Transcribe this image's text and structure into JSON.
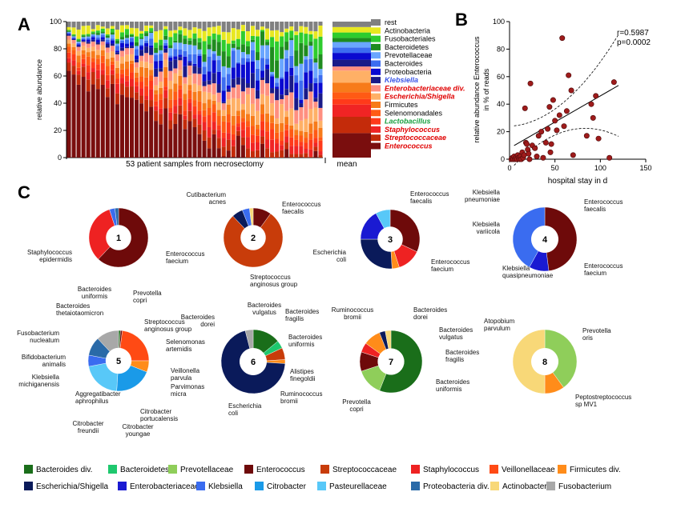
{
  "panels": {
    "a": "A",
    "b": "B",
    "c": "C"
  },
  "colors": {
    "Enterococcus": "#7a0e0e",
    "Streptococcaceae": "#c42b0a",
    "Staphylococcus": "#f02424",
    "Lactobacillus": "#ff3a1a",
    "Selenomonadales": "#ff5a14",
    "Firmicutes": "#f77b1a",
    "Escherichia/Shigella": "#ffb066",
    "Enterobacteriaceae div.": "#ff8f80",
    "Klebsiella": "#1a1a88",
    "Proteobacteria": "#0a0ad0",
    "Bacteroides": "#3c6cf0",
    "Prevotellaceae": "#6aa6ff",
    "Bacteroidetes": "#1f8c1f",
    "Fusobacteriales": "#2ecc2e",
    "Actinobacteria": "#e8e820",
    "rest": "#808080",
    "pie": {
      "bact_div": "#1a6e1a",
      "bacteroidetes": "#1ec86e",
      "prevotellaceae": "#8fce5a",
      "enterococcus": "#6e0a0a",
      "streptococcaceae": "#c83c0a",
      "staphylococcus": "#ee2222",
      "veillonellaceae": "#ff4a14",
      "firmicutes_div": "#ff8c1a",
      "escherichia": "#0a1a5a",
      "enterobacteriaceae": "#1a1ad2",
      "klebsiella": "#3a6cf0",
      "citrobacter": "#1a9ae8",
      "pasteurellaceae": "#58c8f8",
      "proteobacteria_div": "#2a6aa8",
      "actinobacteria": "#f8d878",
      "fusobacterium": "#a8a8a8"
    }
  },
  "chart_data": [
    {
      "id": "A",
      "type": "bar",
      "stacked": true,
      "xlabel": "53 patient samples from necrosectomy",
      "mean_label": "mean",
      "ylabel": "relative abundance",
      "ylim": [
        0,
        100
      ],
      "yticks": [
        "0",
        "20",
        "40",
        "60",
        "80",
        "100"
      ],
      "sample_count": 53,
      "series_order": [
        "Enterococcus",
        "Streptococcaceae",
        "Staphylococcus",
        "Lactobacillus",
        "Selenomonadales",
        "Firmicutes",
        "Escherichia/Shigella",
        "Enterobacteriaceae div.",
        "Klebsiella",
        "Proteobacteria",
        "Bacteroides",
        "Prevotellaceae",
        "Bacteroidetes",
        "Fusobacteriales",
        "Actinobacteria",
        "rest"
      ],
      "mean": [
        18,
        12,
        9,
        4,
        5,
        7,
        9,
        3,
        5,
        5,
        4,
        4,
        3,
        4,
        4,
        4
      ],
      "legend": [
        {
          "label": "rest",
          "key": "rest",
          "style": "normal"
        },
        {
          "label": "Actinobacteria",
          "key": "Actinobacteria",
          "style": "normal"
        },
        {
          "label": "Fusobacteriales",
          "key": "Fusobacteriales",
          "style": "normal"
        },
        {
          "label": "Bacteroidetes",
          "key": "Bacteroidetes",
          "style": "normal"
        },
        {
          "label": "Prevotellaceae",
          "key": "Prevotellaceae",
          "style": "normal"
        },
        {
          "label": "Bacteroides",
          "key": "Bacteroides",
          "style": "normal"
        },
        {
          "label": "Proteobacteria",
          "key": "Proteobacteria",
          "style": "normal"
        },
        {
          "label": "Klebsiella",
          "key": "Klebsiella",
          "style": "blue"
        },
        {
          "label": "Enterobacteriaceae div.",
          "key": "Enterobacteriaceae div.",
          "style": "red"
        },
        {
          "label": "Escherichia/Shigella",
          "key": "Escherichia/Shigella",
          "style": "red"
        },
        {
          "label": "Firmicutes",
          "key": "Firmicutes",
          "style": "normal"
        },
        {
          "label": "Selenomonadales",
          "key": "Selenomonadales",
          "style": "normal"
        },
        {
          "label": "Lactobacillus",
          "key": "Lactobacillus",
          "style": "green"
        },
        {
          "label": "Staphylococcus",
          "key": "Staphylococcus",
          "style": "red"
        },
        {
          "label": "Streptococcaceae",
          "key": "Streptococcaceae",
          "style": "red"
        },
        {
          "label": "Enterococcus",
          "key": "Enterococcus",
          "style": "red"
        }
      ]
    },
    {
      "id": "B",
      "type": "scatter",
      "xlabel": "hospital stay in d",
      "ylabel": "relative abundance Enterococcus in % of reads",
      "xlim": [
        0,
        150
      ],
      "ylim": [
        0,
        100
      ],
      "xticks": [
        "0",
        "50",
        "100",
        "150"
      ],
      "yticks": [
        "0",
        "20",
        "40",
        "60",
        "80",
        "100"
      ],
      "stats": {
        "r": "r=0.5987",
        "p": "p=0.0002"
      },
      "points": [
        [
          2,
          0
        ],
        [
          3,
          1
        ],
        [
          4,
          0
        ],
        [
          5,
          2
        ],
        [
          6,
          0
        ],
        [
          7,
          1
        ],
        [
          8,
          0
        ],
        [
          9,
          3
        ],
        [
          10,
          1
        ],
        [
          11,
          0
        ],
        [
          12,
          2
        ],
        [
          13,
          0
        ],
        [
          14,
          5
        ],
        [
          15,
          1
        ],
        [
          16,
          3
        ],
        [
          18,
          12
        ],
        [
          19,
          11
        ],
        [
          20,
          7
        ],
        [
          21,
          4
        ],
        [
          22,
          0
        ],
        [
          23,
          55
        ],
        [
          25,
          10
        ],
        [
          28,
          8
        ],
        [
          30,
          2
        ],
        [
          32,
          17
        ],
        [
          35,
          20
        ],
        [
          37,
          1
        ],
        [
          40,
          12
        ],
        [
          42,
          22
        ],
        [
          44,
          38
        ],
        [
          45,
          5
        ],
        [
          46,
          11
        ],
        [
          48,
          43
        ],
        [
          50,
          28
        ],
        [
          52,
          21
        ],
        [
          55,
          32
        ],
        [
          58,
          88
        ],
        [
          60,
          24
        ],
        [
          63,
          35
        ],
        [
          65,
          61
        ],
        [
          68,
          50
        ],
        [
          70,
          3
        ],
        [
          85,
          17
        ],
        [
          90,
          40
        ],
        [
          92,
          30
        ],
        [
          95,
          46
        ],
        [
          98,
          15
        ],
        [
          110,
          1
        ],
        [
          115,
          56
        ],
        [
          17,
          37
        ]
      ],
      "fit": {
        "slope": 0.38,
        "intercept": 8
      }
    },
    {
      "id": "C",
      "type": "pie",
      "donuts": [
        {
          "num": "1",
          "slices": [
            {
              "k": "enterococcus",
              "v": 62
            },
            {
              "k": "staphylococcus",
              "v": 33
            },
            {
              "k": "klebsiella",
              "v": 3
            },
            {
              "k": "proteobacteria_div",
              "v": 2
            }
          ],
          "labels": [
            {
              "t": "Staphylococcus\nepidermidis"
            },
            {
              "t": "Enterococcus\nfaecium"
            }
          ]
        },
        {
          "num": "2",
          "slices": [
            {
              "k": "enterococcus",
              "v": 10
            },
            {
              "k": "streptococcaceae",
              "v": 78
            },
            {
              "k": "escherichia",
              "v": 6
            },
            {
              "k": "klebsiella",
              "v": 4
            },
            {
              "k": "actinobacteria",
              "v": 2
            }
          ],
          "labels": [
            {
              "t": "Cutibacterium\nacnes"
            },
            {
              "t": "Enterococcus\nfaecalis"
            },
            {
              "t": "Streptococcus\nanginosus group"
            }
          ]
        },
        {
          "num": "3",
          "slices": [
            {
              "k": "enterococcus",
              "v": 32
            },
            {
              "k": "staphylococcus",
              "v": 13
            },
            {
              "k": "firmicutes_div",
              "v": 4
            },
            {
              "k": "escherichia",
              "v": 26
            },
            {
              "k": "enterobacteriaceae",
              "v": 17
            },
            {
              "k": "pasteurellaceae",
              "v": 8
            }
          ],
          "labels": [
            {
              "t": "Enterococcus\nfaecalis"
            },
            {
              "t": "Escherichia\ncoli"
            },
            {
              "t": "Enterococcus\nfaecium"
            }
          ]
        },
        {
          "num": "4",
          "slices": [
            {
              "k": "enterococcus",
              "v": 48
            },
            {
              "k": "enterobacteriaceae",
              "v": 10
            },
            {
              "k": "klebsiella",
              "v": 42
            }
          ],
          "labels": [
            {
              "t": "Klebsiella\npneumoniae"
            },
            {
              "t": "Enterococcus\nfaecalis"
            },
            {
              "t": "Klebsiella\nvariicola"
            },
            {
              "t": "Klebsiella\nquasipneumoniae"
            },
            {
              "t": "Enterococcus\nfaecium"
            }
          ]
        },
        {
          "num": "5",
          "slices": [
            {
              "k": "bact_div",
              "v": 1
            },
            {
              "k": "enterococcus",
              "v": 1
            },
            {
              "k": "veillonellaceae",
              "v": 23
            },
            {
              "k": "firmicutes_div",
              "v": 6
            },
            {
              "k": "citrobacter",
              "v": 20
            },
            {
              "k": "pasteurellaceae",
              "v": 21
            },
            {
              "k": "klebsiella",
              "v": 6
            },
            {
              "k": "proteobacteria_div",
              "v": 10
            },
            {
              "k": "fusobacterium",
              "v": 12
            }
          ],
          "labels": [
            {
              "t": "Bacteroides\nuniformis"
            },
            {
              "t": "Prevotella\ncopri"
            },
            {
              "t": "Bacteroides\nthetaiotaomicron"
            },
            {
              "t": "Streptococcus\nanginosus group"
            },
            {
              "t": "Fusobacterium\nnucleatum"
            },
            {
              "t": "Selenomonas\nartemidis"
            },
            {
              "t": "Bifidobacterium\nanimalis"
            },
            {
              "t": "Veillonella\nparvula"
            },
            {
              "t": "Parvimonas\nmicra"
            },
            {
              "t": "Klebsiella\nmichiganensis"
            },
            {
              "t": "Aggregatibacter\naphrophilus"
            },
            {
              "t": "Citrobacter\nportucalensis"
            },
            {
              "t": "Citrobacter\nfreundii"
            },
            {
              "t": "Citrobacter\nyoungae"
            }
          ]
        },
        {
          "num": "6",
          "slices": [
            {
              "k": "bact_div",
              "v": 14
            },
            {
              "k": "bacteroidetes",
              "v": 4
            },
            {
              "k": "streptococcaceae",
              "v": 6
            },
            {
              "k": "firmicutes_div",
              "v": 2
            },
            {
              "k": "escherichia",
              "v": 70
            },
            {
              "k": "fusobacterium",
              "v": 4
            }
          ],
          "labels": [
            {
              "t": "Bacteroides\nvulgatus"
            },
            {
              "t": "Bacteroides\ndorei"
            },
            {
              "t": "Bacteroides\nfragilis"
            },
            {
              "t": "Bacteroides\nuniformis"
            },
            {
              "t": "Alistipes\nfinegoldii"
            },
            {
              "t": "Ruminococcus\nbromii"
            },
            {
              "t": "Escherichia\ncoli"
            }
          ]
        },
        {
          "num": "7",
          "slices": [
            {
              "k": "bact_div",
              "v": 56
            },
            {
              "k": "prevotellaceae",
              "v": 14
            },
            {
              "k": "enterococcus",
              "v": 10
            },
            {
              "k": "staphylococcus",
              "v": 5
            },
            {
              "k": "firmicutes_div",
              "v": 9
            },
            {
              "k": "escherichia",
              "v": 3
            },
            {
              "k": "actinobacteria",
              "v": 3
            }
          ],
          "labels": [
            {
              "t": "Ruminococcus\nbromii"
            },
            {
              "t": "Bacteroides\ndorei"
            },
            {
              "t": "Bacteroides\nvulgatus"
            },
            {
              "t": "Bacteroides\nfragilis"
            },
            {
              "t": "Bacteroides\nuniformis"
            },
            {
              "t": "Prevotella\ncopri"
            }
          ]
        },
        {
          "num": "8",
          "slices": [
            {
              "k": "prevotellaceae",
              "v": 40
            },
            {
              "k": "firmicutes_div",
              "v": 10
            },
            {
              "k": "actinobacteria",
              "v": 50
            }
          ],
          "labels": [
            {
              "t": "Atopobium\nparvulum"
            },
            {
              "t": "Prevotella\noris"
            },
            {
              "t": "Peptostreptococcus\nsp MV1"
            }
          ]
        }
      ],
      "legend": [
        {
          "label": "Bacteroides div.",
          "k": "bact_div"
        },
        {
          "label": "Bacteroidetes",
          "k": "bacteroidetes"
        },
        {
          "label": "Prevotellaceae",
          "k": "prevotellaceae"
        },
        {
          "label": "Enterococcus",
          "k": "enterococcus"
        },
        {
          "label": "Streptococcaceae",
          "k": "streptococcaceae"
        },
        {
          "label": "Staphylococcus",
          "k": "staphylococcus"
        },
        {
          "label": "Veillonellaceae",
          "k": "veillonellaceae"
        },
        {
          "label": "Firmicutes div.",
          "k": "firmicutes_div"
        },
        {
          "label": "Escherichia/Shigella",
          "k": "escherichia"
        },
        {
          "label": "Enterobacteriaceae",
          "k": "enterobacteriaceae"
        },
        {
          "label": "Klebsiella",
          "k": "klebsiella"
        },
        {
          "label": "Citrobacter",
          "k": "citrobacter"
        },
        {
          "label": "Pasteurellaceae",
          "k": "pasteurellaceae"
        },
        {
          "label": "Proteobacteria div.",
          "k": "proteobacteria_div"
        },
        {
          "label": "Actinobacteria",
          "k": "actinobacteria"
        },
        {
          "label": "Fusobacterium",
          "k": "fusobacterium"
        }
      ]
    }
  ]
}
